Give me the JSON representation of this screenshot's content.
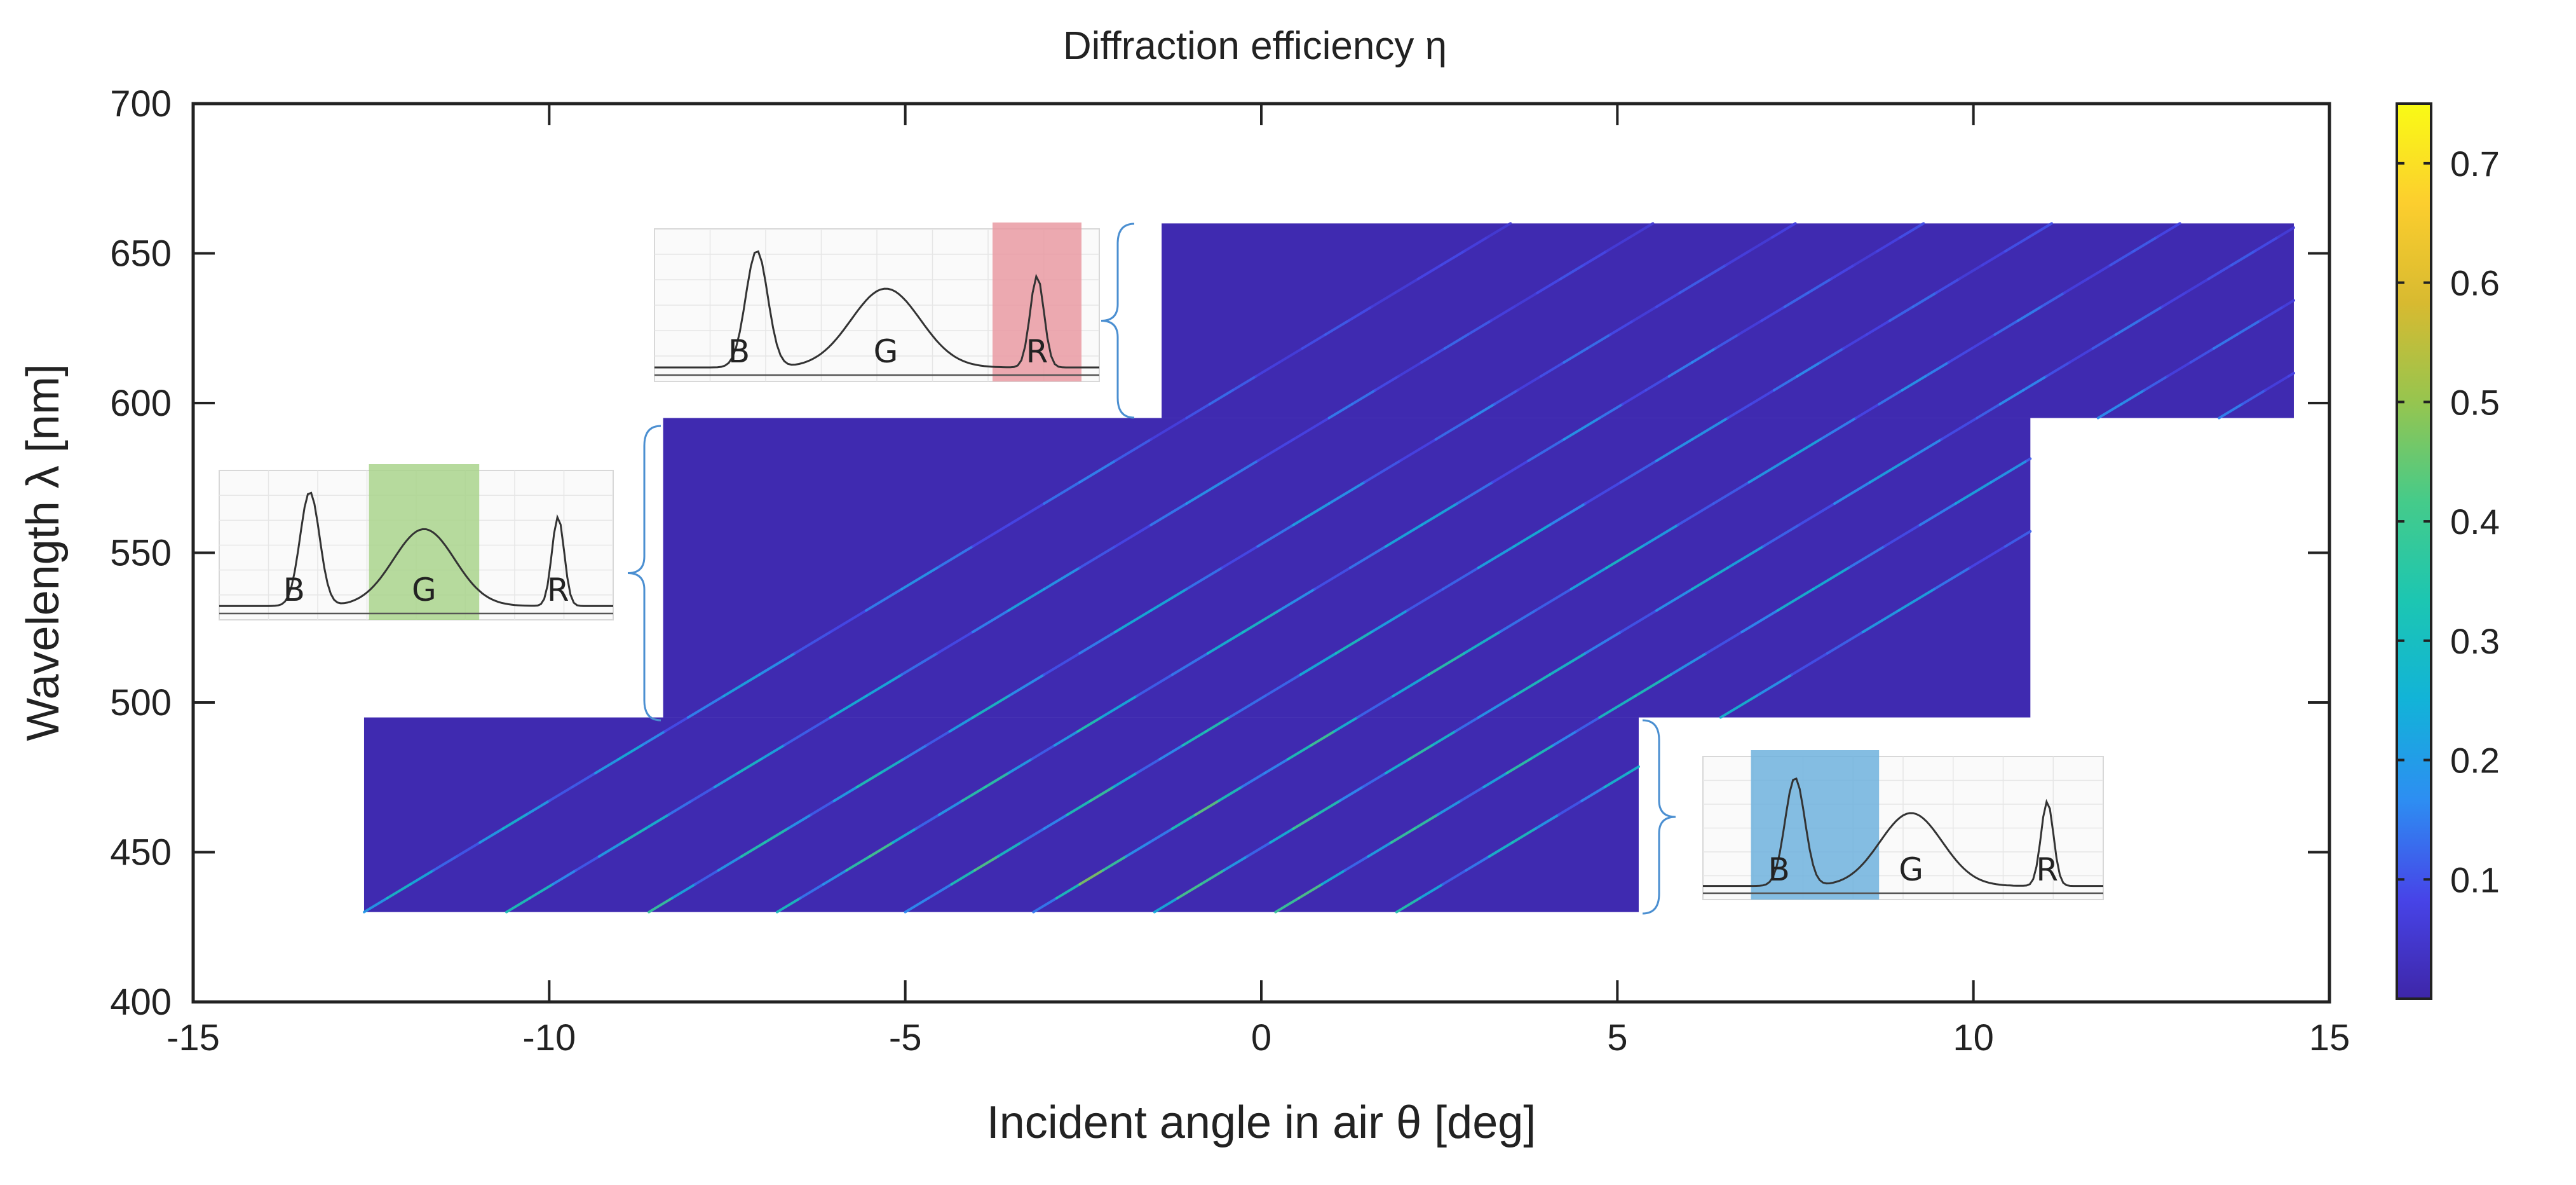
{
  "chart_data": {
    "type": "heatmap",
    "title": "Diffraction efficiency η",
    "xlabel": "Incident angle in air θ [deg]",
    "ylabel": "Wavelength λ [nm]",
    "xlim": [
      -15,
      15
    ],
    "ylim": [
      400,
      700
    ],
    "xticks": [
      -15,
      -10,
      -5,
      0,
      5,
      10,
      15
    ],
    "xtick_labels": [
      "-15",
      "-10",
      "-5",
      "0",
      "5",
      "10",
      "15"
    ],
    "yticks": [
      400,
      450,
      500,
      550,
      600,
      650,
      700
    ],
    "ytick_labels": [
      "400",
      "450",
      "500",
      "550",
      "600",
      "650",
      "700"
    ],
    "colorbar": {
      "range": [
        0,
        0.75
      ],
      "ticks": [
        0.1,
        0.2,
        0.3,
        0.4,
        0.5,
        0.6,
        0.7
      ],
      "tick_labels": [
        "0.1",
        "0.2",
        "0.3",
        "0.4",
        "0.5",
        "0.6",
        "0.7"
      ],
      "colormap": "parula",
      "stops": [
        "#3e26a8",
        "#4744e8",
        "#2d8ef2",
        "#12b3d8",
        "#1cc6b2",
        "#45cb8a",
        "#96c54f",
        "#d8ba30",
        "#fcce2e",
        "#f9fb15"
      ]
    },
    "background_value": 0.01,
    "regions": [
      {
        "name": "Blue channel",
        "angle_range": [
          -12.6,
          5.3
        ],
        "wavelength_range": [
          430,
          495
        ]
      },
      {
        "name": "Green channel",
        "angle_range": [
          -8.4,
          10.8
        ],
        "wavelength_range": [
          495,
          595
        ]
      },
      {
        "name": "Red channel",
        "angle_range": [
          -1.4,
          14.5
        ],
        "wavelength_range": [
          595,
          660
        ]
      }
    ],
    "peak_lines": [
      {
        "angle_at_430nm": -12.6,
        "slope_deg_per_nm": 0.07,
        "peak_eta": 0.3
      },
      {
        "angle_at_430nm": -10.6,
        "slope_deg_per_nm": 0.07,
        "peak_eta": 0.35
      },
      {
        "angle_at_430nm": -8.6,
        "slope_deg_per_nm": 0.07,
        "peak_eta": 0.4
      },
      {
        "angle_at_430nm": -6.8,
        "slope_deg_per_nm": 0.07,
        "peak_eta": 0.45
      },
      {
        "angle_at_430nm": -5.0,
        "slope_deg_per_nm": 0.07,
        "peak_eta": 0.45
      },
      {
        "angle_at_430nm": -3.2,
        "slope_deg_per_nm": 0.07,
        "peak_eta": 0.5
      },
      {
        "angle_at_430nm": -1.5,
        "slope_deg_per_nm": 0.07,
        "peak_eta": 0.45
      },
      {
        "angle_at_430nm": 0.2,
        "slope_deg_per_nm": 0.07,
        "peak_eta": 0.45
      },
      {
        "angle_at_430nm": 1.9,
        "slope_deg_per_nm": 0.07,
        "peak_eta": 0.35
      }
    ],
    "annotations": [
      {
        "region": "Red channel",
        "highlight": "R",
        "bands": [
          "B",
          "G",
          "R"
        ]
      },
      {
        "region": "Green channel",
        "highlight": "G",
        "bands": [
          "B",
          "G",
          "R"
        ]
      },
      {
        "region": "Blue channel",
        "highlight": "B",
        "bands": [
          "B",
          "G",
          "R"
        ]
      }
    ],
    "band_colors": {
      "B": "#1f77c4",
      "G": "#5aa62a",
      "R": "#d42a3a"
    },
    "highlight_colors": {
      "B": "#6fb2dd",
      "G": "#a9d38c",
      "R": "#e99aa2"
    }
  }
}
